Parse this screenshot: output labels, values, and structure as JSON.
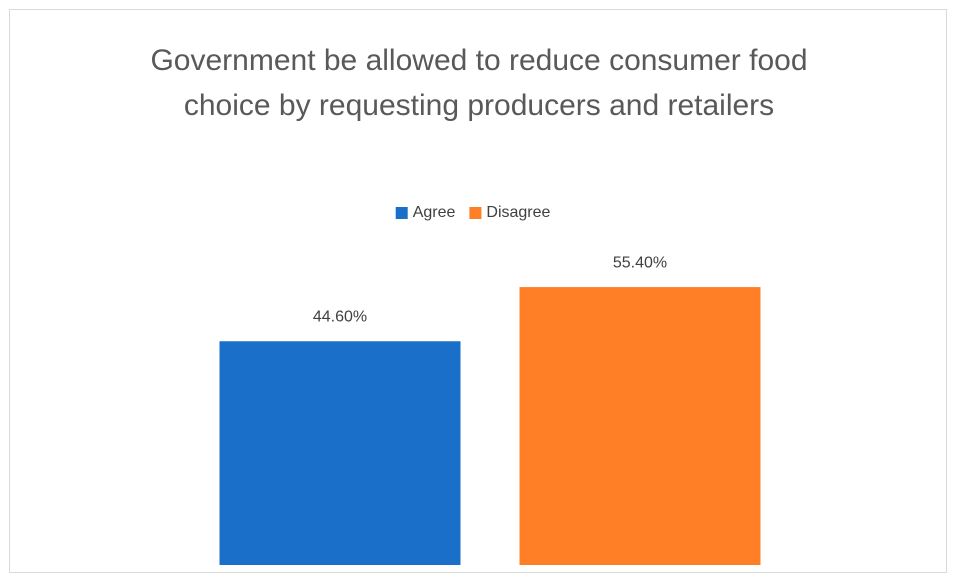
{
  "chart_data": {
    "type": "bar",
    "title": "Government be allowed to reduce consumer food choice by requesting producers and retailers",
    "categories": [
      null
    ],
    "series": [
      {
        "name": "Agree",
        "color": "#1a70c8",
        "values": [
          44.6
        ],
        "value_labels": [
          "44.60%"
        ]
      },
      {
        "name": "Disagree",
        "color": "#fe7f26",
        "values": [
          55.4
        ],
        "value_labels": [
          "55.40%"
        ]
      }
    ],
    "ylim": [
      0,
      60
    ],
    "legend": "top"
  }
}
